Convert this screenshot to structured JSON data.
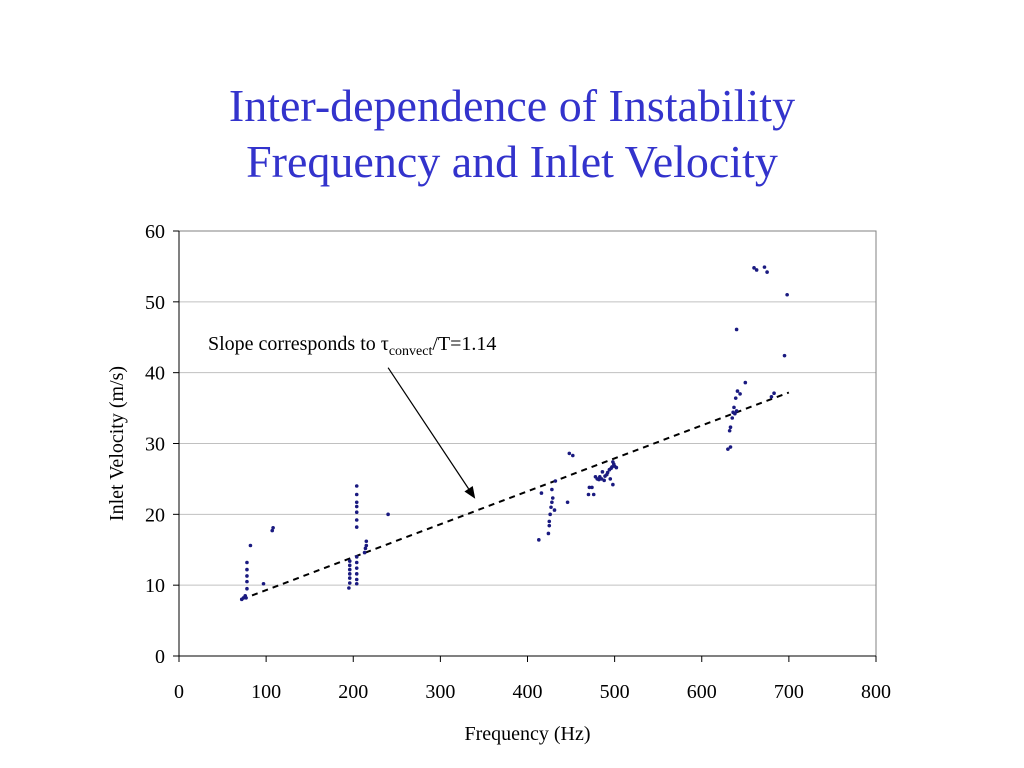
{
  "slide": {
    "title_line1": "Inter-dependence of Instability",
    "title_line2": "Frequency and Inlet Velocity"
  },
  "colors": {
    "title": "#3333cc",
    "points": "#1a1a80",
    "trend": "#000000",
    "grid": "#c0c0c0"
  },
  "chart_data": {
    "type": "scatter",
    "xlabel": "Frequency (Hz)",
    "ylabel": "Inlet Velocity (m/s)",
    "xlim": [
      0,
      800
    ],
    "ylim": [
      0,
      60
    ],
    "xticks": [
      0,
      100,
      200,
      300,
      400,
      500,
      600,
      700,
      800
    ],
    "yticks": [
      0,
      10,
      20,
      30,
      40,
      50,
      60
    ],
    "grid": "horizontal",
    "legend": "none",
    "annotation": {
      "text_main": "Slope corresponds to ",
      "symbol": "τ",
      "subscript": "convect",
      "text_tail": "/T=1.14",
      "arrow_from": [
        240,
        40.7
      ],
      "arrow_to": [
        340,
        22.2
      ]
    },
    "trendline": {
      "style": "dashed",
      "from": [
        72,
        8
      ],
      "to": [
        700,
        37.2
      ]
    },
    "points": [
      [
        72,
        8
      ],
      [
        74,
        8.2
      ],
      [
        76,
        8.5
      ],
      [
        77,
        8.2
      ],
      [
        78,
        9.5
      ],
      [
        78,
        10.5
      ],
      [
        78,
        11.3
      ],
      [
        78,
        12.2
      ],
      [
        78,
        13.2
      ],
      [
        82,
        15.6
      ],
      [
        97,
        10.2
      ],
      [
        107,
        17.7
      ],
      [
        108,
        18.1
      ],
      [
        195,
        9.6
      ],
      [
        196,
        10.3
      ],
      [
        196,
        11
      ],
      [
        196,
        11.6
      ],
      [
        196,
        12.2
      ],
      [
        196,
        12.8
      ],
      [
        196,
        13.4
      ],
      [
        204,
        10.2
      ],
      [
        204,
        10.8
      ],
      [
        204,
        11.6
      ],
      [
        204,
        12.4
      ],
      [
        204,
        13.2
      ],
      [
        204,
        14
      ],
      [
        204,
        18.2
      ],
      [
        204,
        19.2
      ],
      [
        204,
        20.3
      ],
      [
        204,
        21.1
      ],
      [
        204,
        21.7
      ],
      [
        204,
        22.8
      ],
      [
        204,
        24
      ],
      [
        213,
        14.6
      ],
      [
        214,
        15.2
      ],
      [
        215,
        15.6
      ],
      [
        215,
        16.2
      ],
      [
        240,
        20
      ],
      [
        413,
        16.4
      ],
      [
        416,
        23
      ],
      [
        424,
        17.3
      ],
      [
        425,
        18.4
      ],
      [
        425,
        19
      ],
      [
        426,
        20
      ],
      [
        427,
        21
      ],
      [
        428,
        21.7
      ],
      [
        429,
        22.3
      ],
      [
        431,
        20.6
      ],
      [
        428,
        23.5
      ],
      [
        432,
        24.7
      ],
      [
        446,
        21.7
      ],
      [
        448,
        28.6
      ],
      [
        452,
        28.3
      ],
      [
        470,
        22.8
      ],
      [
        471,
        23.8
      ],
      [
        474,
        23.8
      ],
      [
        476,
        22.8
      ],
      [
        478,
        25.3
      ],
      [
        480,
        25
      ],
      [
        482,
        24.9
      ],
      [
        483,
        25.3
      ],
      [
        485,
        25
      ],
      [
        486,
        26
      ],
      [
        488,
        24.8
      ],
      [
        489,
        25.4
      ],
      [
        491,
        25.6
      ],
      [
        492,
        25.9
      ],
      [
        494,
        26.3
      ],
      [
        495,
        25
      ],
      [
        496,
        26.5
      ],
      [
        497,
        26.7
      ],
      [
        498,
        27.4
      ],
      [
        499,
        27.1
      ],
      [
        500,
        26.8
      ],
      [
        502,
        26.6
      ],
      [
        498,
        24.2
      ],
      [
        630,
        29.2
      ],
      [
        633,
        29.5
      ],
      [
        632,
        31.8
      ],
      [
        633,
        32.3
      ],
      [
        635,
        33.6
      ],
      [
        636,
        34.4
      ],
      [
        637,
        35.1
      ],
      [
        638,
        34.2
      ],
      [
        639,
        36.4
      ],
      [
        640,
        34.6
      ],
      [
        641,
        37.4
      ],
      [
        644,
        37
      ],
      [
        640,
        46.1
      ],
      [
        650,
        38.6
      ],
      [
        660,
        54.8
      ],
      [
        663,
        54.5
      ],
      [
        672,
        54.9
      ],
      [
        675,
        54.2
      ],
      [
        680,
        36.6
      ],
      [
        683,
        37.1
      ],
      [
        695,
        42.4
      ],
      [
        698,
        51
      ]
    ]
  }
}
